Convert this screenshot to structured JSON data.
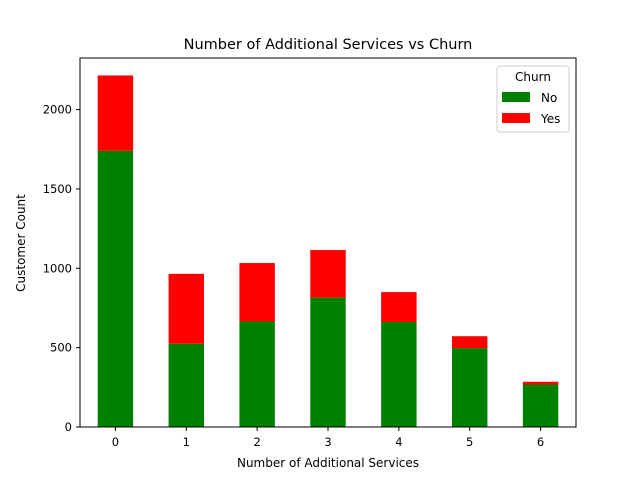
{
  "chart_data": {
    "type": "bar",
    "stacked": true,
    "title": "Number of Additional Services vs Churn",
    "xlabel": "Number of Additional Services",
    "ylabel": "Customer Count",
    "categories": [
      "0",
      "1",
      "2",
      "3",
      "4",
      "5",
      "6"
    ],
    "series": [
      {
        "name": "No",
        "color": "#008000",
        "values": [
          1740,
          525,
          665,
          815,
          662,
          497,
          268
        ]
      },
      {
        "name": "Yes",
        "color": "#ff0000",
        "values": [
          475,
          440,
          368,
          300,
          188,
          75,
          17
        ]
      }
    ],
    "ylim": [
      0,
      2325
    ],
    "yticks": [
      0,
      500,
      1000,
      1500,
      2000
    ],
    "legend": {
      "title": "Churn",
      "position": "top-right"
    },
    "grid": false
  }
}
